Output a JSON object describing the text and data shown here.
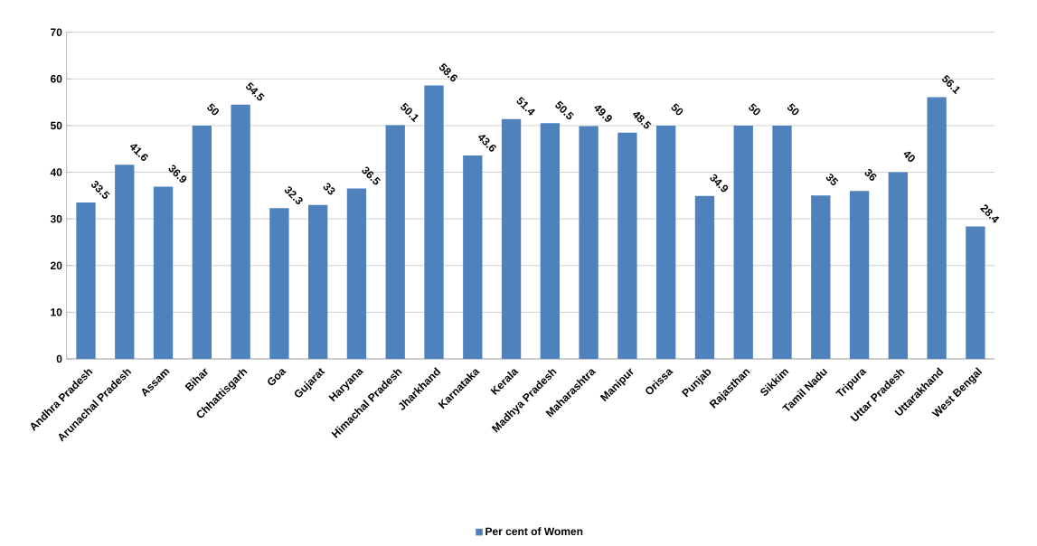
{
  "chart_data": {
    "type": "bar",
    "categories": [
      "Andhra Pradesh",
      "Arunachal Pradesh",
      "Assam",
      "Bihar",
      "Chhattisgarh",
      "Goa",
      "Gujarat",
      "Haryana",
      "Himachal Pradesh",
      "Jharkhand",
      "Karnataka",
      "Kerala",
      "Madhya Pradesh",
      "Maharashtra",
      "Manipur",
      "Orissa",
      "Punjab",
      "Rajasthan",
      "Sikkim",
      "Tamil Nadu",
      "Tripura",
      "Uttar Pradesh",
      "Uttarakhand",
      "West Bengal"
    ],
    "series": [
      {
        "name": "Per cent of Women",
        "color": "#4f81bd",
        "values": [
          33.5,
          41.6,
          36.9,
          50,
          54.5,
          32.3,
          33,
          36.5,
          50.1,
          58.6,
          43.6,
          51.4,
          50.5,
          49.9,
          48.5,
          50,
          34.9,
          50,
          50,
          35,
          36,
          40,
          56.1,
          28.4
        ]
      }
    ],
    "ylim": [
      0,
      70
    ],
    "yticks": [
      0,
      10,
      20,
      30,
      40,
      50,
      60,
      70
    ],
    "grid": "y",
    "legend": "bottom",
    "data_labels": true
  }
}
